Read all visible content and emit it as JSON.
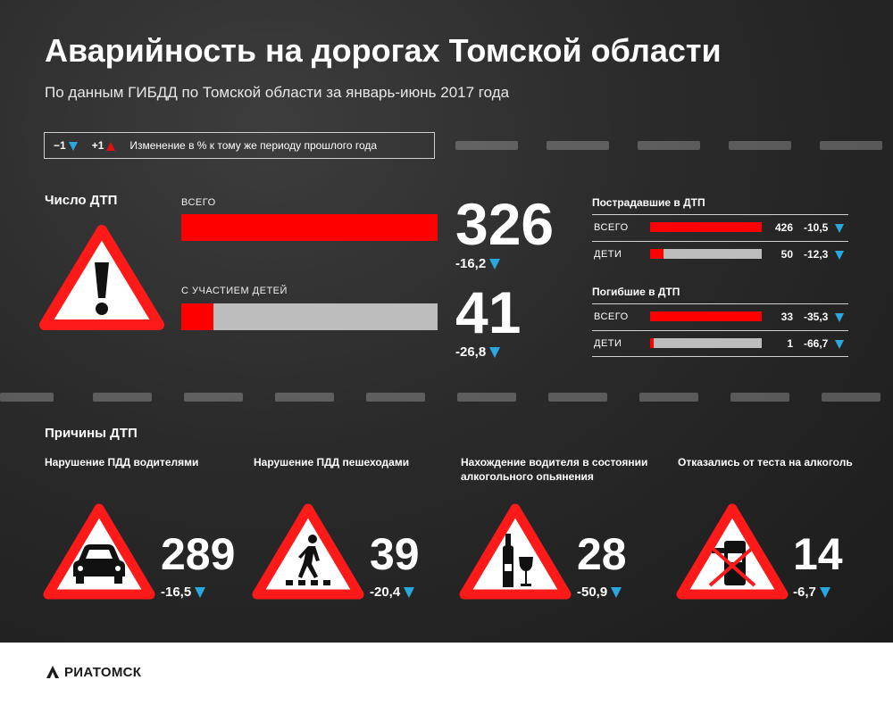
{
  "header": {
    "title": "Аварийность на дорогах Томской области",
    "subtitle": "По данным ГИБДД по Томской области за январь-июнь 2017 года"
  },
  "legend": {
    "minus_label": "−1",
    "plus_label": "+1",
    "description": "Изменение в % к тому же периоду прошлого года",
    "down_color": "#29a8e0",
    "up_color": "#e01010"
  },
  "accidents": {
    "heading": "Число ДТП",
    "icon": "warning-exclamation-icon",
    "total": {
      "label": "ВСЕГО",
      "value": "326",
      "change": "-16,2",
      "fill": 1.0
    },
    "children": {
      "label": "С УЧАСТИЕМ ДЕТЕЙ",
      "value": "41",
      "change": "-26,8",
      "fill": 0.126
    }
  },
  "injured": {
    "heading": "Пострадавшие в ДТП",
    "rows": [
      {
        "label": "ВСЕГО",
        "value": "426",
        "change": "-10,5",
        "fill": 1.0
      },
      {
        "label": "ДЕТИ",
        "value": "50",
        "change": "-12,3",
        "fill": 0.117
      }
    ]
  },
  "killed": {
    "heading": "Погибшие в ДТП",
    "rows": [
      {
        "label": "ВСЕГО",
        "value": "33",
        "change": "-35,3",
        "fill": 1.0
      },
      {
        "label": "ДЕТИ",
        "value": "1",
        "change": "-66,7",
        "fill": 0.03
      }
    ]
  },
  "causes": {
    "heading": "Причины ДТП",
    "items": [
      {
        "title": "Нарушение ПДД водителями",
        "value": "289",
        "change": "-16,5",
        "icon": "car-icon"
      },
      {
        "title": "Нарушение ПДД пешеходами",
        "value": "39",
        "change": "-20,4",
        "icon": "pedestrian-icon"
      },
      {
        "title": "Нахождение водителя в состоянии алкогольного опьянения",
        "value": "28",
        "change": "-50,9",
        "icon": "bottle-glass-icon"
      },
      {
        "title": "Отказались от теста на алкоголь",
        "value": "14",
        "change": "-6,7",
        "icon": "breathalyzer-crossed-icon"
      }
    ]
  },
  "footer": {
    "logo_text": "РИАТОМСК",
    "icon": "ria-logo-icon"
  },
  "colors": {
    "accent_red": "#ff0000",
    "bar_gray": "#bdbdbd",
    "arrow_blue": "#29a8e0"
  }
}
